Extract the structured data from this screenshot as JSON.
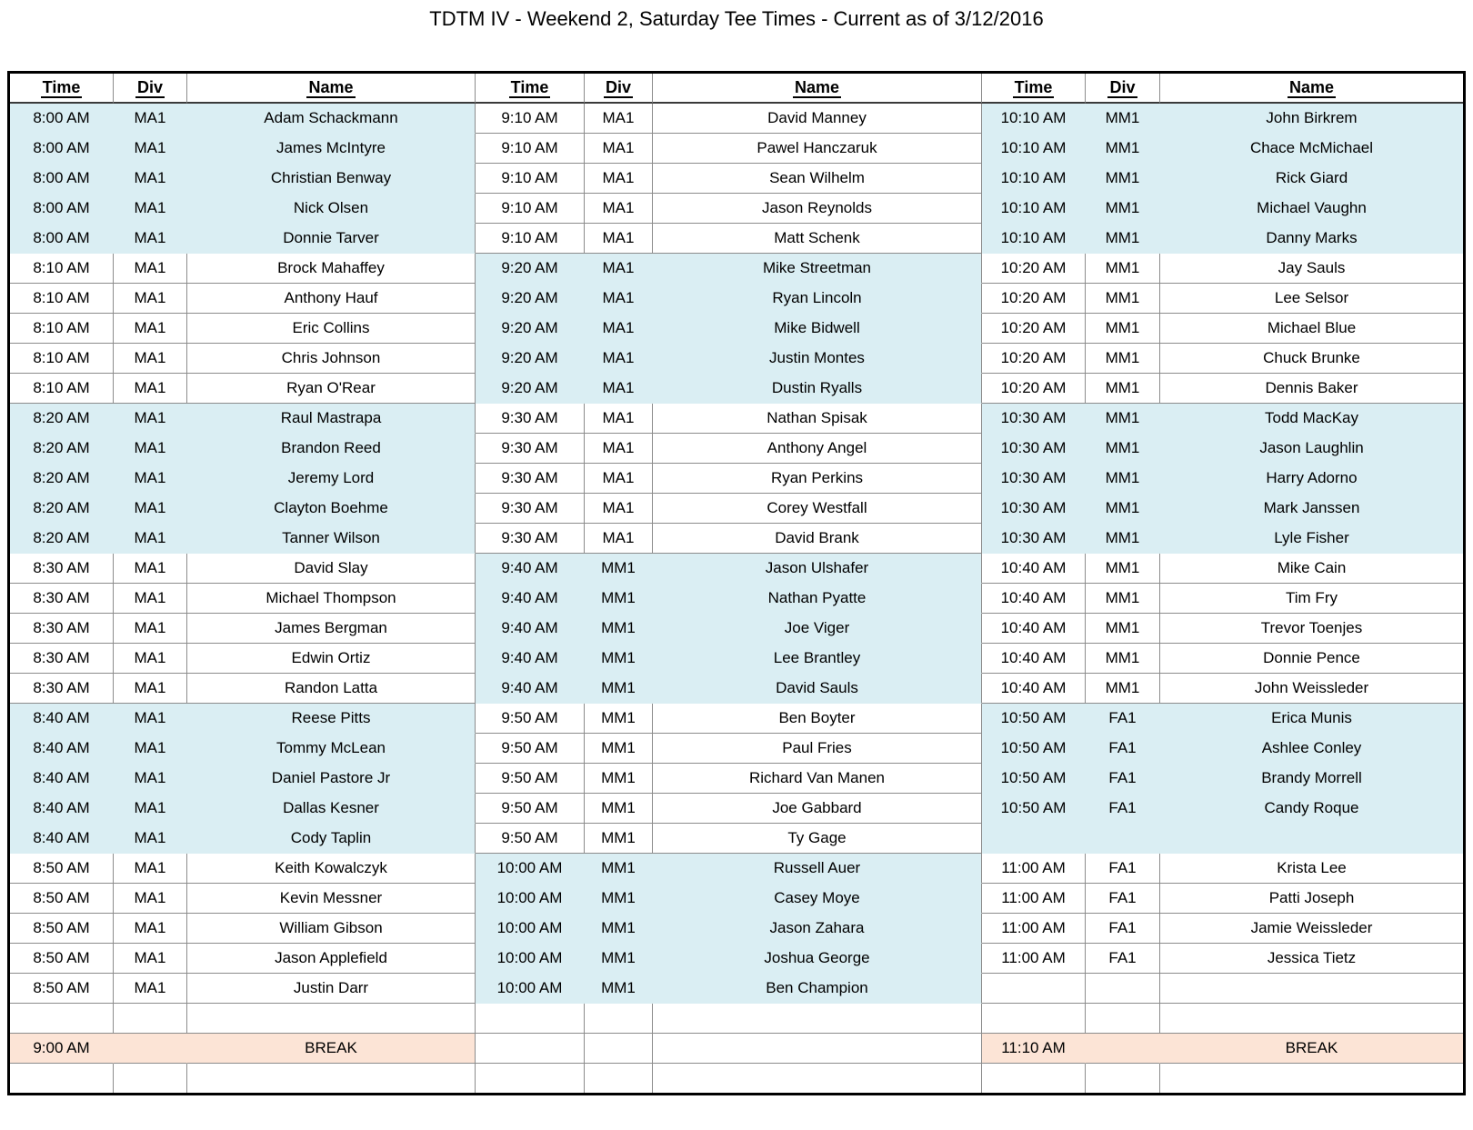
{
  "title": "TDTM IV - Weekend 2, Saturday Tee Times - Current as of 3/12/2016",
  "columns": [
    "Time",
    "Div",
    "Name"
  ],
  "break_label": "BREAK",
  "colors": {
    "band_blue": "#daeef3",
    "break_peach": "#fce4d6",
    "grid_line": "#8c8c8c",
    "outer_border": "#000000"
  },
  "rows": [
    [
      {
        "t": "8:00 AM",
        "d": "MA1",
        "n": "Adam Schackmann",
        "s": "blue"
      },
      {
        "t": "9:10 AM",
        "d": "MA1",
        "n": "David Manney",
        "s": "white"
      },
      {
        "t": "10:10 AM",
        "d": "MM1",
        "n": "John Birkrem",
        "s": "blue"
      }
    ],
    [
      {
        "t": "8:00 AM",
        "d": "MA1",
        "n": "James McIntyre",
        "s": "blue"
      },
      {
        "t": "9:10 AM",
        "d": "MA1",
        "n": "Pawel Hanczaruk",
        "s": "white"
      },
      {
        "t": "10:10 AM",
        "d": "MM1",
        "n": "Chace McMichael",
        "s": "blue"
      }
    ],
    [
      {
        "t": "8:00 AM",
        "d": "MA1",
        "n": "Christian Benway",
        "s": "blue"
      },
      {
        "t": "9:10 AM",
        "d": "MA1",
        "n": "Sean Wilhelm",
        "s": "white"
      },
      {
        "t": "10:10 AM",
        "d": "MM1",
        "n": "Rick Giard",
        "s": "blue"
      }
    ],
    [
      {
        "t": "8:00 AM",
        "d": "MA1",
        "n": "Nick Olsen",
        "s": "blue"
      },
      {
        "t": "9:10 AM",
        "d": "MA1",
        "n": "Jason Reynolds",
        "s": "white"
      },
      {
        "t": "10:10 AM",
        "d": "MM1",
        "n": "Michael Vaughn",
        "s": "blue"
      }
    ],
    [
      {
        "t": "8:00 AM",
        "d": "MA1",
        "n": "Donnie Tarver",
        "s": "blue"
      },
      {
        "t": "9:10 AM",
        "d": "MA1",
        "n": "Matt Schenk",
        "s": "white"
      },
      {
        "t": "10:10 AM",
        "d": "MM1",
        "n": "Danny Marks",
        "s": "blue"
      }
    ],
    [
      {
        "t": "8:10 AM",
        "d": "MA1",
        "n": "Brock Mahaffey",
        "s": "white"
      },
      {
        "t": "9:20 AM",
        "d": "MA1",
        "n": "Mike Streetman",
        "s": "blue"
      },
      {
        "t": "10:20 AM",
        "d": "MM1",
        "n": "Jay Sauls",
        "s": "white"
      }
    ],
    [
      {
        "t": "8:10 AM",
        "d": "MA1",
        "n": "Anthony Hauf",
        "s": "white"
      },
      {
        "t": "9:20 AM",
        "d": "MA1",
        "n": "Ryan Lincoln",
        "s": "blue"
      },
      {
        "t": "10:20 AM",
        "d": "MM1",
        "n": "Lee Selsor",
        "s": "white"
      }
    ],
    [
      {
        "t": "8:10 AM",
        "d": "MA1",
        "n": "Eric Collins",
        "s": "white"
      },
      {
        "t": "9:20 AM",
        "d": "MA1",
        "n": "Mike Bidwell",
        "s": "blue"
      },
      {
        "t": "10:20 AM",
        "d": "MM1",
        "n": "Michael Blue",
        "s": "white"
      }
    ],
    [
      {
        "t": "8:10 AM",
        "d": "MA1",
        "n": "Chris Johnson",
        "s": "white"
      },
      {
        "t": "9:20 AM",
        "d": "MA1",
        "n": "Justin Montes",
        "s": "blue"
      },
      {
        "t": "10:20 AM",
        "d": "MM1",
        "n": "Chuck Brunke",
        "s": "white"
      }
    ],
    [
      {
        "t": "8:10 AM",
        "d": "MA1",
        "n": "Ryan O'Rear",
        "s": "white"
      },
      {
        "t": "9:20 AM",
        "d": "MA1",
        "n": "Dustin Ryalls",
        "s": "blue"
      },
      {
        "t": "10:20 AM",
        "d": "MM1",
        "n": "Dennis Baker",
        "s": "white"
      }
    ],
    [
      {
        "t": "8:20 AM",
        "d": "MA1",
        "n": "Raul Mastrapa",
        "s": "blue"
      },
      {
        "t": "9:30 AM",
        "d": "MA1",
        "n": "Nathan Spisak",
        "s": "white"
      },
      {
        "t": "10:30 AM",
        "d": "MM1",
        "n": "Todd MacKay",
        "s": "blue"
      }
    ],
    [
      {
        "t": "8:20 AM",
        "d": "MA1",
        "n": "Brandon Reed",
        "s": "blue"
      },
      {
        "t": "9:30 AM",
        "d": "MA1",
        "n": "Anthony Angel",
        "s": "white"
      },
      {
        "t": "10:30 AM",
        "d": "MM1",
        "n": "Jason Laughlin",
        "s": "blue"
      }
    ],
    [
      {
        "t": "8:20 AM",
        "d": "MA1",
        "n": "Jeremy Lord",
        "s": "blue"
      },
      {
        "t": "9:30 AM",
        "d": "MA1",
        "n": "Ryan Perkins",
        "s": "white"
      },
      {
        "t": "10:30 AM",
        "d": "MM1",
        "n": "Harry Adorno",
        "s": "blue"
      }
    ],
    [
      {
        "t": "8:20 AM",
        "d": "MA1",
        "n": "Clayton Boehme",
        "s": "blue"
      },
      {
        "t": "9:30 AM",
        "d": "MA1",
        "n": "Corey Westfall",
        "s": "white"
      },
      {
        "t": "10:30 AM",
        "d": "MM1",
        "n": "Mark Janssen",
        "s": "blue"
      }
    ],
    [
      {
        "t": "8:20 AM",
        "d": "MA1",
        "n": "Tanner Wilson",
        "s": "blue"
      },
      {
        "t": "9:30 AM",
        "d": "MA1",
        "n": "David Brank",
        "s": "white"
      },
      {
        "t": "10:30 AM",
        "d": "MM1",
        "n": "Lyle Fisher",
        "s": "blue"
      }
    ],
    [
      {
        "t": "8:30 AM",
        "d": "MA1",
        "n": "David Slay",
        "s": "white"
      },
      {
        "t": "9:40 AM",
        "d": "MM1",
        "n": "Jason Ulshafer",
        "s": "blue"
      },
      {
        "t": "10:40 AM",
        "d": "MM1",
        "n": "Mike Cain",
        "s": "white"
      }
    ],
    [
      {
        "t": "8:30 AM",
        "d": "MA1",
        "n": "Michael Thompson",
        "s": "white"
      },
      {
        "t": "9:40 AM",
        "d": "MM1",
        "n": "Nathan Pyatte",
        "s": "blue"
      },
      {
        "t": "10:40 AM",
        "d": "MM1",
        "n": "Tim Fry",
        "s": "white"
      }
    ],
    [
      {
        "t": "8:30 AM",
        "d": "MA1",
        "n": "James Bergman",
        "s": "white"
      },
      {
        "t": "9:40 AM",
        "d": "MM1",
        "n": "Joe Viger",
        "s": "blue"
      },
      {
        "t": "10:40 AM",
        "d": "MM1",
        "n": "Trevor Toenjes",
        "s": "white"
      }
    ],
    [
      {
        "t": "8:30 AM",
        "d": "MA1",
        "n": "Edwin Ortiz",
        "s": "white"
      },
      {
        "t": "9:40 AM",
        "d": "MM1",
        "n": "Lee Brantley",
        "s": "blue"
      },
      {
        "t": "10:40 AM",
        "d": "MM1",
        "n": "Donnie Pence",
        "s": "white"
      }
    ],
    [
      {
        "t": "8:30 AM",
        "d": "MA1",
        "n": "Randon Latta",
        "s": "white"
      },
      {
        "t": "9:40 AM",
        "d": "MM1",
        "n": "David Sauls",
        "s": "blue"
      },
      {
        "t": "10:40 AM",
        "d": "MM1",
        "n": "John Weissleder",
        "s": "white"
      }
    ],
    [
      {
        "t": "8:40 AM",
        "d": "MA1",
        "n": "Reese Pitts",
        "s": "blue"
      },
      {
        "t": "9:50 AM",
        "d": "MM1",
        "n": "Ben Boyter",
        "s": "white"
      },
      {
        "t": "10:50 AM",
        "d": "FA1",
        "n": "Erica Munis",
        "s": "blue"
      }
    ],
    [
      {
        "t": "8:40 AM",
        "d": "MA1",
        "n": "Tommy McLean",
        "s": "blue"
      },
      {
        "t": "9:50 AM",
        "d": "MM1",
        "n": "Paul Fries",
        "s": "white"
      },
      {
        "t": "10:50 AM",
        "d": "FA1",
        "n": "Ashlee Conley",
        "s": "blue"
      }
    ],
    [
      {
        "t": "8:40 AM",
        "d": "MA1",
        "n": "Daniel Pastore Jr",
        "s": "blue"
      },
      {
        "t": "9:50 AM",
        "d": "MM1",
        "n": "Richard Van Manen",
        "s": "white"
      },
      {
        "t": "10:50 AM",
        "d": "FA1",
        "n": "Brandy Morrell",
        "s": "blue"
      }
    ],
    [
      {
        "t": "8:40 AM",
        "d": "MA1",
        "n": "Dallas Kesner",
        "s": "blue"
      },
      {
        "t": "9:50 AM",
        "d": "MM1",
        "n": "Joe Gabbard",
        "s": "white"
      },
      {
        "t": "10:50 AM",
        "d": "FA1",
        "n": "Candy Roque",
        "s": "blue"
      }
    ],
    [
      {
        "t": "8:40 AM",
        "d": "MA1",
        "n": "Cody Taplin",
        "s": "blue"
      },
      {
        "t": "9:50 AM",
        "d": "MM1",
        "n": "Ty Gage",
        "s": "white"
      },
      {
        "t": "",
        "d": "",
        "n": "",
        "s": "blue"
      }
    ],
    [
      {
        "t": "8:50 AM",
        "d": "MA1",
        "n": "Keith Kowalczyk",
        "s": "white"
      },
      {
        "t": "10:00 AM",
        "d": "MM1",
        "n": "Russell Auer",
        "s": "blue"
      },
      {
        "t": "11:00 AM",
        "d": "FA1",
        "n": "Krista Lee",
        "s": "white"
      }
    ],
    [
      {
        "t": "8:50 AM",
        "d": "MA1",
        "n": "Kevin Messner",
        "s": "white"
      },
      {
        "t": "10:00 AM",
        "d": "MM1",
        "n": "Casey Moye",
        "s": "blue"
      },
      {
        "t": "11:00 AM",
        "d": "FA1",
        "n": "Patti Joseph",
        "s": "white"
      }
    ],
    [
      {
        "t": "8:50 AM",
        "d": "MA1",
        "n": "William Gibson",
        "s": "white"
      },
      {
        "t": "10:00 AM",
        "d": "MM1",
        "n": "Jason Zahara",
        "s": "blue"
      },
      {
        "t": "11:00 AM",
        "d": "FA1",
        "n": "Jamie Weissleder",
        "s": "white"
      }
    ],
    [
      {
        "t": "8:50 AM",
        "d": "MA1",
        "n": "Jason Applefield",
        "s": "white"
      },
      {
        "t": "10:00 AM",
        "d": "MM1",
        "n": "Joshua George",
        "s": "blue"
      },
      {
        "t": "11:00 AM",
        "d": "FA1",
        "n": "Jessica Tietz",
        "s": "white"
      }
    ],
    [
      {
        "t": "8:50 AM",
        "d": "MA1",
        "n": "Justin Darr",
        "s": "white"
      },
      {
        "t": "10:00 AM",
        "d": "MM1",
        "n": "Ben Champion",
        "s": "blue"
      },
      {
        "t": "",
        "d": "",
        "n": "",
        "s": "white"
      }
    ],
    [
      {
        "t": "",
        "d": "",
        "n": "",
        "s": "white"
      },
      {
        "t": "",
        "d": "",
        "n": "",
        "s": "white"
      },
      {
        "t": "",
        "d": "",
        "n": "",
        "s": "white"
      }
    ],
    [
      {
        "t": "9:00 AM",
        "d": "",
        "n": "BREAK",
        "s": "break"
      },
      {
        "t": "",
        "d": "",
        "n": "",
        "s": "white"
      },
      {
        "t": "11:10 AM",
        "d": "",
        "n": "BREAK",
        "s": "break"
      }
    ],
    [
      {
        "t": "",
        "d": "",
        "n": "",
        "s": "white"
      },
      {
        "t": "",
        "d": "",
        "n": "",
        "s": "white"
      },
      {
        "t": "",
        "d": "",
        "n": "",
        "s": "white"
      }
    ]
  ]
}
